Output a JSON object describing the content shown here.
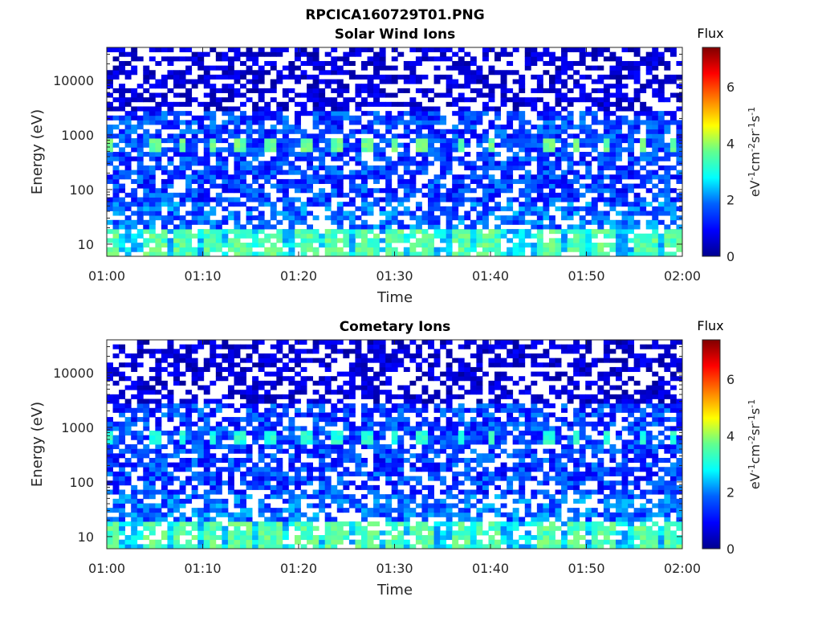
{
  "figure": {
    "title": "RPCICA160729T01.PNG"
  },
  "colormap": [
    "#00008f",
    "#0000ff",
    "#0080ff",
    "#00ffff",
    "#80ff80",
    "#ffff00",
    "#ff8000",
    "#ff0000",
    "#800000"
  ],
  "chart_data": [
    {
      "type": "heatmap",
      "title": "Solar Wind Ions",
      "xlabel": "Time",
      "ylabel": "Energy (eV)",
      "x_ticks": [
        "01:00",
        "01:10",
        "01:20",
        "01:30",
        "01:40",
        "01:50",
        "02:00"
      ],
      "xlim": [
        "01:00",
        "02:00"
      ],
      "y_scale": "log",
      "y_ticks": [
        10,
        100,
        1000,
        10000
      ],
      "y_tick_labels": [
        "10",
        "100",
        "1000",
        "10000"
      ],
      "ylim": [
        6,
        40000
      ],
      "colorbar": {
        "title": "Flux",
        "label": "eV-1cm-2sr-1s-1",
        "range": [
          0,
          7.4
        ],
        "ticks": [
          0,
          2,
          4,
          6
        ],
        "tick_labels": [
          "0",
          "2",
          "4",
          "6"
        ]
      },
      "grid": false,
      "features": [
        {
          "energy_ev": 650,
          "description": "periodic peaks ~3.5",
          "times": [
            "01:00",
            "01:05",
            "01:08",
            "01:11",
            "01:14",
            "01:17",
            "01:21",
            "01:24",
            "01:27",
            "01:30",
            "01:33",
            "01:37",
            "01:40",
            "01:46",
            "01:49",
            "01:52",
            "01:56",
            "01:59"
          ]
        },
        {
          "energy_ev_range": [
            6,
            20
          ],
          "description": "low-energy band ~2.5-3.5"
        }
      ]
    },
    {
      "type": "heatmap",
      "title": "Cometary Ions",
      "xlabel": "Time",
      "ylabel": "Energy (eV)",
      "x_ticks": [
        "01:00",
        "01:10",
        "01:20",
        "01:30",
        "01:40",
        "01:50",
        "02:00"
      ],
      "xlim": [
        "01:00",
        "02:00"
      ],
      "y_scale": "log",
      "y_ticks": [
        10,
        100,
        1000,
        10000
      ],
      "y_tick_labels": [
        "10",
        "100",
        "1000",
        "10000"
      ],
      "ylim": [
        6,
        40000
      ],
      "colorbar": {
        "title": "Flux",
        "label": "eV-1cm-2sr-1s-1",
        "range": [
          0,
          7.4
        ],
        "ticks": [
          0,
          2,
          4,
          6
        ],
        "tick_labels": [
          "0",
          "2",
          "4",
          "6"
        ]
      },
      "grid": false,
      "features": [
        {
          "energy_ev": 650,
          "description": "periodic peaks ~3",
          "times": [
            "01:00",
            "01:05",
            "01:08",
            "01:11",
            "01:14",
            "01:17",
            "01:21",
            "01:24",
            "01:27",
            "01:30",
            "01:33",
            "01:37",
            "01:40",
            "01:46",
            "01:49",
            "01:52",
            "01:56",
            "01:59"
          ]
        },
        {
          "energy_ev_range": [
            6,
            20
          ],
          "description": "low-energy band ~2.5-3.5"
        }
      ]
    }
  ]
}
